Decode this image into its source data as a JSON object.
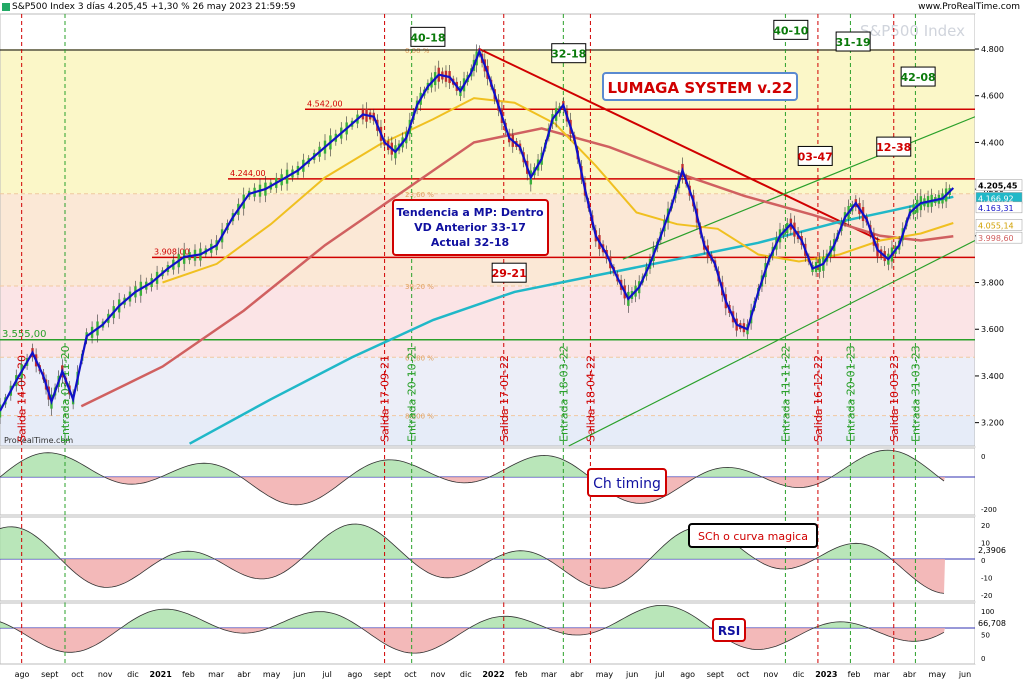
{
  "header": {
    "title": "S&P500 Index 3 días 4.205,45 +1,30 % 26 may 2023 21:59:59",
    "brand": "www.ProRealTime.com",
    "watermark": "S&P500 Index",
    "prorealtime": "ProRealTime.com"
  },
  "chart_data": {
    "type": "line",
    "title": "LUMAGA SYSTEM v.22",
    "ylim": [
      3100,
      4950
    ],
    "y_ticks": [
      "4.800",
      "4.600",
      "4.400",
      "4.200",
      "4.000",
      "3.800",
      "3.600",
      "3.400",
      "3.200"
    ],
    "y_tick_values": [
      4800,
      4600,
      4400,
      4200,
      4000,
      3800,
      3600,
      3400,
      3200
    ],
    "x_labels": [
      "ago",
      "sept",
      "oct",
      "nov",
      "dic",
      "2021",
      "feb",
      "mar",
      "abr",
      "may",
      "jun",
      "jul",
      "ago",
      "sept",
      "oct",
      "nov",
      "dic",
      "2022",
      "feb",
      "mar",
      "abr",
      "may",
      "jun",
      "jul",
      "ago",
      "sept",
      "oct",
      "nov",
      "dic",
      "2023",
      "feb",
      "mar",
      "abr",
      "may",
      "jun"
    ],
    "price_labels": {
      "last": "4.205,45",
      "ma_cyan": "4.166,92",
      "ma_blue": "4.163,31",
      "ma_yellow": "4.055,14",
      "ma_red": "3.998,60"
    },
    "price": [
      {
        "t": 0,
        "v": 3250
      },
      {
        "t": 6,
        "v": 3380
      },
      {
        "t": 12,
        "v": 3500
      },
      {
        "t": 16,
        "v": 3400
      },
      {
        "t": 19,
        "v": 3290
      },
      {
        "t": 23,
        "v": 3420
      },
      {
        "t": 27,
        "v": 3300
      },
      {
        "t": 32,
        "v": 3570
      },
      {
        "t": 38,
        "v": 3620
      },
      {
        "t": 44,
        "v": 3700
      },
      {
        "t": 50,
        "v": 3760
      },
      {
        "t": 56,
        "v": 3800
      },
      {
        "t": 62,
        "v": 3860
      },
      {
        "t": 68,
        "v": 3910
      },
      {
        "t": 74,
        "v": 3920
      },
      {
        "t": 80,
        "v": 3960
      },
      {
        "t": 86,
        "v": 4080
      },
      {
        "t": 92,
        "v": 4180
      },
      {
        "t": 98,
        "v": 4200
      },
      {
        "t": 104,
        "v": 4240
      },
      {
        "t": 110,
        "v": 4280
      },
      {
        "t": 116,
        "v": 4340
      },
      {
        "t": 122,
        "v": 4400
      },
      {
        "t": 128,
        "v": 4460
      },
      {
        "t": 134,
        "v": 4520
      },
      {
        "t": 138,
        "v": 4510
      },
      {
        "t": 142,
        "v": 4400
      },
      {
        "t": 146,
        "v": 4360
      },
      {
        "t": 150,
        "v": 4420
      },
      {
        "t": 154,
        "v": 4560
      },
      {
        "t": 158,
        "v": 4640
      },
      {
        "t": 162,
        "v": 4690
      },
      {
        "t": 166,
        "v": 4680
      },
      {
        "t": 170,
        "v": 4620
      },
      {
        "t": 174,
        "v": 4700
      },
      {
        "t": 177,
        "v": 4790
      },
      {
        "t": 180,
        "v": 4700
      },
      {
        "t": 184,
        "v": 4560
      },
      {
        "t": 188,
        "v": 4420
      },
      {
        "t": 192,
        "v": 4380
      },
      {
        "t": 196,
        "v": 4250
      },
      {
        "t": 200,
        "v": 4330
      },
      {
        "t": 204,
        "v": 4500
      },
      {
        "t": 208,
        "v": 4560
      },
      {
        "t": 212,
        "v": 4420
      },
      {
        "t": 216,
        "v": 4200
      },
      {
        "t": 220,
        "v": 4000
      },
      {
        "t": 224,
        "v": 3920
      },
      {
        "t": 228,
        "v": 3820
      },
      {
        "t": 232,
        "v": 3730
      },
      {
        "t": 236,
        "v": 3780
      },
      {
        "t": 240,
        "v": 3880
      },
      {
        "t": 244,
        "v": 4000
      },
      {
        "t": 248,
        "v": 4130
      },
      {
        "t": 252,
        "v": 4280
      },
      {
        "t": 256,
        "v": 4150
      },
      {
        "t": 260,
        "v": 3960
      },
      {
        "t": 264,
        "v": 3880
      },
      {
        "t": 268,
        "v": 3720
      },
      {
        "t": 272,
        "v": 3620
      },
      {
        "t": 276,
        "v": 3600
      },
      {
        "t": 280,
        "v": 3760
      },
      {
        "t": 284,
        "v": 3900
      },
      {
        "t": 288,
        "v": 4000
      },
      {
        "t": 292,
        "v": 4050
      },
      {
        "t": 296,
        "v": 3980
      },
      {
        "t": 300,
        "v": 3860
      },
      {
        "t": 304,
        "v": 3880
      },
      {
        "t": 308,
        "v": 3960
      },
      {
        "t": 312,
        "v": 4080
      },
      {
        "t": 316,
        "v": 4140
      },
      {
        "t": 320,
        "v": 4070
      },
      {
        "t": 324,
        "v": 3940
      },
      {
        "t": 328,
        "v": 3900
      },
      {
        "t": 332,
        "v": 3960
      },
      {
        "t": 336,
        "v": 4100
      },
      {
        "t": 340,
        "v": 4140
      },
      {
        "t": 344,
        "v": 4150
      },
      {
        "t": 348,
        "v": 4160
      },
      {
        "t": 352,
        "v": 4205
      }
    ],
    "ma_yellow": [
      {
        "t": 60,
        "v": 3800
      },
      {
        "t": 80,
        "v": 3880
      },
      {
        "t": 100,
        "v": 4050
      },
      {
        "t": 120,
        "v": 4250
      },
      {
        "t": 140,
        "v": 4390
      },
      {
        "t": 160,
        "v": 4500
      },
      {
        "t": 175,
        "v": 4590
      },
      {
        "t": 190,
        "v": 4570
      },
      {
        "t": 205,
        "v": 4480
      },
      {
        "t": 220,
        "v": 4300
      },
      {
        "t": 235,
        "v": 4100
      },
      {
        "t": 250,
        "v": 4050
      },
      {
        "t": 265,
        "v": 4030
      },
      {
        "t": 280,
        "v": 3920
      },
      {
        "t": 295,
        "v": 3890
      },
      {
        "t": 310,
        "v": 3920
      },
      {
        "t": 325,
        "v": 3980
      },
      {
        "t": 340,
        "v": 4010
      },
      {
        "t": 352,
        "v": 4055
      }
    ],
    "ma_red": [
      {
        "t": 30,
        "v": 3270
      },
      {
        "t": 60,
        "v": 3440
      },
      {
        "t": 90,
        "v": 3680
      },
      {
        "t": 120,
        "v": 3960
      },
      {
        "t": 150,
        "v": 4200
      },
      {
        "t": 175,
        "v": 4400
      },
      {
        "t": 200,
        "v": 4460
      },
      {
        "t": 225,
        "v": 4380
      },
      {
        "t": 250,
        "v": 4270
      },
      {
        "t": 275,
        "v": 4170
      },
      {
        "t": 300,
        "v": 4090
      },
      {
        "t": 325,
        "v": 4000
      },
      {
        "t": 340,
        "v": 3980
      },
      {
        "t": 352,
        "v": 3998
      }
    ],
    "ma_cyan": [
      {
        "t": 70,
        "v": 3110
      },
      {
        "t": 100,
        "v": 3300
      },
      {
        "t": 130,
        "v": 3480
      },
      {
        "t": 160,
        "v": 3640
      },
      {
        "t": 190,
        "v": 3760
      },
      {
        "t": 220,
        "v": 3830
      },
      {
        "t": 250,
        "v": 3900
      },
      {
        "t": 280,
        "v": 3970
      },
      {
        "t": 310,
        "v": 4060
      },
      {
        "t": 330,
        "v": 4110
      },
      {
        "t": 352,
        "v": 4167
      }
    ],
    "horizontal_levels": [
      {
        "label": "4.542,00",
        "value": 4542,
        "color": "#d00000"
      },
      {
        "label": "4.244,00",
        "value": 4244,
        "color": "#d00000"
      },
      {
        "label": "3.908,00",
        "value": 3908,
        "color": "#d00000"
      },
      {
        "label": "3.555,00",
        "value": 3555,
        "color": "#2aa02a"
      }
    ],
    "fib_levels": [
      {
        "label": "0,00 %",
        "value": 4796
      },
      {
        "label": "23,60 %",
        "value": 4180
      },
      {
        "label": "38,20 %",
        "value": 3785
      },
      {
        "label": "61,80 %",
        "value": 3480
      },
      {
        "label": "80,00 %",
        "value": 3230
      }
    ],
    "vertical_markers": [
      {
        "label": "Salida 14-09-20",
        "t": 8,
        "color": "red"
      },
      {
        "label": "Entrada 03-11-20",
        "t": 24,
        "color": "green"
      },
      {
        "label": "Salida 17-09-21",
        "t": 142,
        "color": "red"
      },
      {
        "label": "Entrada 20-10-21",
        "t": 152,
        "color": "green"
      },
      {
        "label": "Salida 17-01-22",
        "t": 186,
        "color": "red"
      },
      {
        "label": "Entrada 18-03-22",
        "t": 208,
        "color": "green"
      },
      {
        "label": "Salida 18-04-22",
        "t": 218,
        "color": "red"
      },
      {
        "label": "Entrada 11-11-22",
        "t": 290,
        "color": "green"
      },
      {
        "label": "Salida 16-12-22",
        "t": 302,
        "color": "red"
      },
      {
        "label": "Entrada 20-01-23",
        "t": 314,
        "color": "green"
      },
      {
        "label": "Salida 10-03-23",
        "t": 330,
        "color": "red"
      },
      {
        "label": "Entrada 31-03-23",
        "t": 338,
        "color": "green"
      }
    ],
    "cycle_boxes": [
      {
        "label": "40-18",
        "t": 158,
        "value": 4850,
        "color": "green"
      },
      {
        "label": "32-18",
        "t": 210,
        "value": 4780,
        "color": "green"
      },
      {
        "label": "40-10",
        "t": 292,
        "value": 4880,
        "color": "green"
      },
      {
        "label": "31-19",
        "t": 315,
        "value": 4830,
        "color": "green"
      },
      {
        "label": "42-08",
        "t": 339,
        "value": 4680,
        "color": "green"
      },
      {
        "label": "03-47",
        "t": 301,
        "value": 4340,
        "color": "red"
      },
      {
        "label": "12-38",
        "t": 330,
        "value": 4380,
        "color": "red"
      },
      {
        "label": "29-21",
        "t": 188,
        "value": 3840,
        "color": "red"
      }
    ],
    "annotation_tendencia": [
      "Tendencia a MP: Dentro",
      "VD Anterior 33-17",
      "Actual 32-18"
    ],
    "subpanels": [
      {
        "name": "Ch timing",
        "ticks": [
          "0",
          "-200"
        ]
      },
      {
        "name": "SCh o curva magica",
        "ticks": [
          "20",
          "10",
          "0",
          "-10",
          "-20"
        ],
        "value_label": "2,3906"
      },
      {
        "name": "RSI",
        "ticks": [
          "100",
          "50",
          "0"
        ],
        "value_label": "66,708"
      }
    ]
  },
  "colors": {
    "red": "#d00000",
    "green": "#2aa02a",
    "blue": "#1010c8",
    "yellow": "#f0c020",
    "cyan": "#20b8c8",
    "ma_red": "#d06060"
  }
}
